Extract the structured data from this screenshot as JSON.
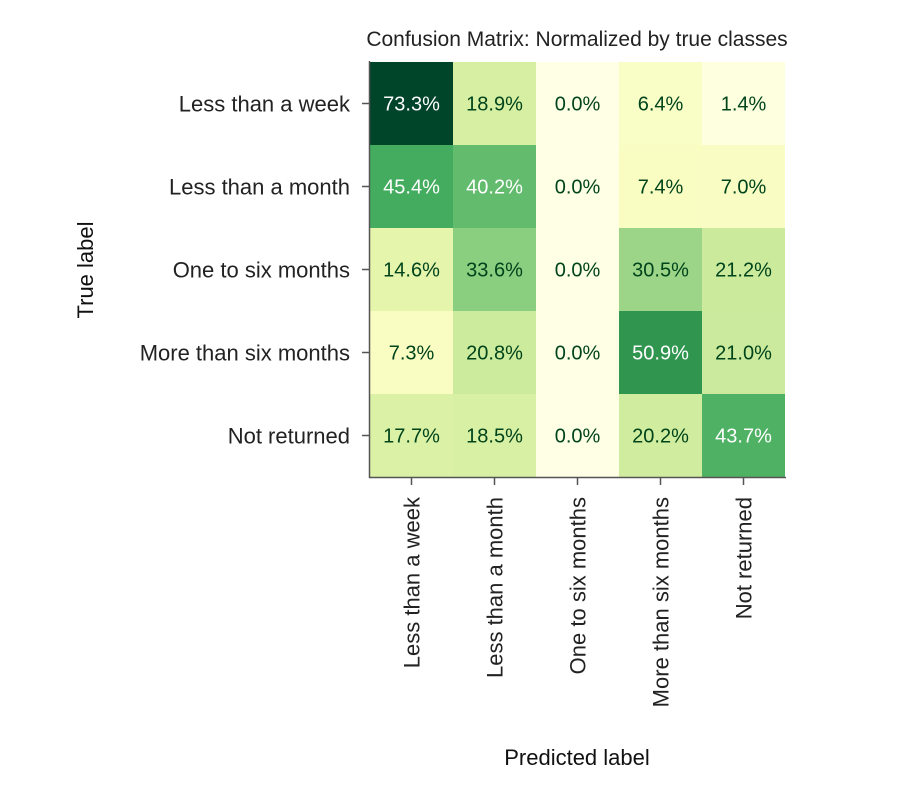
{
  "chart_data": {
    "type": "heatmap",
    "title": "Confusion Matrix: Normalized by true classes",
    "xlabel": "Predicted label",
    "ylabel": "True label",
    "row_labels": [
      "Less than a week",
      "Less than a month",
      "One to six months",
      "More than six months",
      "Not returned"
    ],
    "col_labels": [
      "Less than a week",
      "Less than a month",
      "One to six months",
      "More than six months",
      "Not returned"
    ],
    "values": [
      [
        73.3,
        18.9,
        0.0,
        6.4,
        1.4
      ],
      [
        45.4,
        40.2,
        0.0,
        7.4,
        7.0
      ],
      [
        14.6,
        33.6,
        0.0,
        30.5,
        21.2
      ],
      [
        7.3,
        20.8,
        0.0,
        50.9,
        21.0
      ],
      [
        17.7,
        18.5,
        0.0,
        20.2,
        43.7
      ]
    ],
    "value_format": "percent_1dp",
    "colormap": "YlGn",
    "vmin": 0.0,
    "vmax": 73.3,
    "grid": false
  }
}
